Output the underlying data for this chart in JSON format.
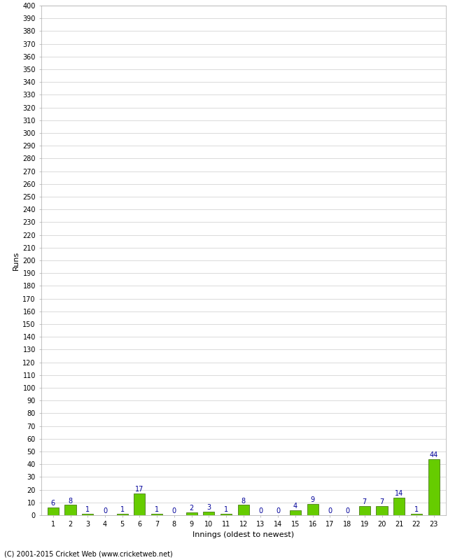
{
  "title": "",
  "xlabel": "Innings (oldest to newest)",
  "ylabel": "Runs",
  "categories": [
    1,
    2,
    3,
    4,
    5,
    6,
    7,
    8,
    9,
    10,
    11,
    12,
    13,
    14,
    15,
    16,
    17,
    18,
    19,
    20,
    21,
    22,
    23
  ],
  "values": [
    6,
    8,
    1,
    0,
    1,
    17,
    1,
    0,
    2,
    3,
    1,
    8,
    0,
    0,
    4,
    9,
    0,
    0,
    7,
    7,
    14,
    1,
    44
  ],
  "bar_color": "#66cc00",
  "bar_edge_color": "#336600",
  "label_color": "#000099",
  "ylim": [
    0,
    400
  ],
  "background_color": "#ffffff",
  "grid_color": "#cccccc",
  "footer": "(C) 2001-2015 Cricket Web (www.cricketweb.net)",
  "ylabel_fontsize": 8,
  "xlabel_fontsize": 8,
  "tick_fontsize": 7,
  "bar_label_fontsize": 7,
  "footer_fontsize": 7
}
